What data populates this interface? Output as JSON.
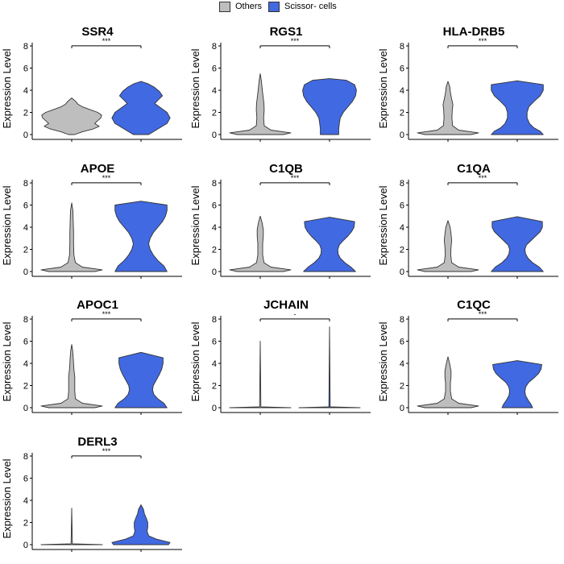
{
  "legend": {
    "items": [
      {
        "label": "Others",
        "color": "#bebebe"
      },
      {
        "label": "Scissor- cells",
        "color": "#4169e1"
      }
    ]
  },
  "chart_data": {
    "type": "violin",
    "ylabel": "Expression Level",
    "ylim": [
      0,
      8.3
    ],
    "yticks": [
      0,
      2,
      4,
      6,
      8
    ],
    "groups": [
      "Others",
      "Scissor- cells"
    ],
    "panels": [
      {
        "title": "SSR4",
        "sig": "***",
        "violins": [
          {
            "group": "Others",
            "profile": [
              [
                0.0,
                0.1
              ],
              [
                0.25,
                0.35
              ],
              [
                0.5,
                0.7
              ],
              [
                0.75,
                0.9
              ],
              [
                1.0,
                0.75
              ],
              [
                1.25,
                0.85
              ],
              [
                1.5,
                0.95
              ],
              [
                1.75,
                0.98
              ],
              [
                2.0,
                0.85
              ],
              [
                2.25,
                0.6
              ],
              [
                2.5,
                0.35
              ],
              [
                2.75,
                0.2
              ],
              [
                3.0,
                0.13
              ],
              [
                3.3,
                0.0
              ]
            ]
          },
          {
            "group": "Scissor- cells",
            "profile": [
              [
                0.0,
                0.25
              ],
              [
                0.5,
                0.55
              ],
              [
                1.0,
                0.85
              ],
              [
                1.5,
                0.95
              ],
              [
                2.0,
                0.85
              ],
              [
                2.5,
                0.6
              ],
              [
                2.8,
                0.45
              ],
              [
                3.1,
                0.55
              ],
              [
                3.5,
                0.7
              ],
              [
                3.9,
                0.6
              ],
              [
                4.3,
                0.42
              ],
              [
                4.6,
                0.22
              ],
              [
                4.8,
                0.0
              ]
            ]
          }
        ]
      },
      {
        "title": "RGS1",
        "sig": "***",
        "violins": [
          {
            "group": "Others",
            "profile": [
              [
                0.0,
                0.75
              ],
              [
                0.15,
                1.0
              ],
              [
                0.4,
                0.35
              ],
              [
                0.8,
                0.13
              ],
              [
                1.5,
                0.11
              ],
              [
                2.2,
                0.13
              ],
              [
                2.8,
                0.12
              ],
              [
                3.5,
                0.09
              ],
              [
                4.2,
                0.06
              ],
              [
                4.8,
                0.04
              ],
              [
                5.5,
                0.0
              ]
            ]
          },
          {
            "group": "Scissor- cells",
            "profile": [
              [
                0.0,
                0.3
              ],
              [
                0.5,
                0.3
              ],
              [
                1.0,
                0.32
              ],
              [
                1.5,
                0.35
              ],
              [
                2.0,
                0.45
              ],
              [
                2.5,
                0.6
              ],
              [
                3.0,
                0.75
              ],
              [
                3.5,
                0.85
              ],
              [
                4.0,
                0.88
              ],
              [
                4.5,
                0.82
              ],
              [
                4.9,
                0.55
              ],
              [
                5.05,
                0.0
              ]
            ]
          }
        ]
      },
      {
        "title": "HLA-DRB5",
        "sig": "***",
        "violins": [
          {
            "group": "Others",
            "profile": [
              [
                0.0,
                0.75
              ],
              [
                0.15,
                1.0
              ],
              [
                0.4,
                0.35
              ],
              [
                0.8,
                0.15
              ],
              [
                1.5,
                0.13
              ],
              [
                2.2,
                0.14
              ],
              [
                2.7,
                0.16
              ],
              [
                3.2,
                0.12
              ],
              [
                3.8,
                0.08
              ],
              [
                4.3,
                0.06
              ],
              [
                4.8,
                0.0
              ]
            ]
          },
          {
            "group": "Scissor- cells",
            "profile": [
              [
                0.0,
                0.85
              ],
              [
                0.3,
                0.75
              ],
              [
                0.6,
                0.55
              ],
              [
                1.0,
                0.4
              ],
              [
                1.5,
                0.32
              ],
              [
                2.0,
                0.32
              ],
              [
                2.5,
                0.38
              ],
              [
                3.0,
                0.55
              ],
              [
                3.5,
                0.75
              ],
              [
                4.0,
                0.85
              ],
              [
                4.5,
                0.85
              ],
              [
                4.85,
                0.0
              ]
            ]
          }
        ]
      },
      {
        "title": "APOE",
        "sig": "***",
        "violins": [
          {
            "group": "Others",
            "profile": [
              [
                0.0,
                0.75
              ],
              [
                0.15,
                1.0
              ],
              [
                0.4,
                0.35
              ],
              [
                0.8,
                0.12
              ],
              [
                1.5,
                0.07
              ],
              [
                2.5,
                0.06
              ],
              [
                3.5,
                0.06
              ],
              [
                4.5,
                0.05
              ],
              [
                5.5,
                0.04
              ],
              [
                6.2,
                0.0
              ]
            ]
          },
          {
            "group": "Scissor- cells",
            "profile": [
              [
                0.0,
                0.85
              ],
              [
                0.5,
                0.75
              ],
              [
                1.0,
                0.55
              ],
              [
                1.5,
                0.4
              ],
              [
                2.0,
                0.3
              ],
              [
                2.5,
                0.25
              ],
              [
                3.0,
                0.3
              ],
              [
                3.5,
                0.4
              ],
              [
                4.0,
                0.55
              ],
              [
                4.5,
                0.7
              ],
              [
                5.0,
                0.8
              ],
              [
                5.5,
                0.85
              ],
              [
                6.0,
                0.85
              ],
              [
                6.35,
                0.0
              ]
            ]
          }
        ]
      },
      {
        "title": "C1QB",
        "sig": "***",
        "violins": [
          {
            "group": "Others",
            "profile": [
              [
                0.0,
                0.75
              ],
              [
                0.15,
                1.0
              ],
              [
                0.4,
                0.35
              ],
              [
                0.8,
                0.12
              ],
              [
                1.5,
                0.08
              ],
              [
                2.5,
                0.08
              ],
              [
                3.2,
                0.1
              ],
              [
                3.8,
                0.1
              ],
              [
                4.4,
                0.06
              ],
              [
                5.0,
                0.0
              ]
            ]
          },
          {
            "group": "Scissor- cells",
            "profile": [
              [
                0.0,
                0.85
              ],
              [
                0.4,
                0.7
              ],
              [
                0.8,
                0.5
              ],
              [
                1.2,
                0.35
              ],
              [
                1.6,
                0.28
              ],
              [
                2.0,
                0.27
              ],
              [
                2.4,
                0.32
              ],
              [
                2.8,
                0.45
              ],
              [
                3.2,
                0.6
              ],
              [
                3.6,
                0.72
              ],
              [
                4.0,
                0.8
              ],
              [
                4.5,
                0.82
              ],
              [
                4.9,
                0.0
              ]
            ]
          }
        ]
      },
      {
        "title": "C1QA",
        "sig": "***",
        "violins": [
          {
            "group": "Others",
            "profile": [
              [
                0.0,
                0.75
              ],
              [
                0.15,
                1.0
              ],
              [
                0.4,
                0.35
              ],
              [
                0.8,
                0.12
              ],
              [
                1.5,
                0.09
              ],
              [
                2.2,
                0.1
              ],
              [
                2.8,
                0.12
              ],
              [
                3.4,
                0.1
              ],
              [
                4.0,
                0.07
              ],
              [
                4.6,
                0.0
              ]
            ]
          },
          {
            "group": "Scissor- cells",
            "profile": [
              [
                0.0,
                0.85
              ],
              [
                0.4,
                0.72
              ],
              [
                0.8,
                0.5
              ],
              [
                1.2,
                0.35
              ],
              [
                1.6,
                0.27
              ],
              [
                2.0,
                0.25
              ],
              [
                2.4,
                0.3
              ],
              [
                2.8,
                0.45
              ],
              [
                3.2,
                0.6
              ],
              [
                3.6,
                0.75
              ],
              [
                4.0,
                0.82
              ],
              [
                4.5,
                0.82
              ],
              [
                4.95,
                0.0
              ]
            ]
          }
        ]
      },
      {
        "title": "APOC1",
        "sig": "***",
        "violins": [
          {
            "group": "Others",
            "profile": [
              [
                0.0,
                0.75
              ],
              [
                0.15,
                1.0
              ],
              [
                0.4,
                0.35
              ],
              [
                0.8,
                0.12
              ],
              [
                1.5,
                0.1
              ],
              [
                2.2,
                0.1
              ],
              [
                2.8,
                0.1
              ],
              [
                3.5,
                0.07
              ],
              [
                4.5,
                0.05
              ],
              [
                5.2,
                0.03
              ],
              [
                5.7,
                0.0
              ]
            ]
          },
          {
            "group": "Scissor- cells",
            "profile": [
              [
                0.0,
                0.85
              ],
              [
                0.4,
                0.75
              ],
              [
                0.8,
                0.55
              ],
              [
                1.2,
                0.42
              ],
              [
                1.6,
                0.38
              ],
              [
                2.0,
                0.4
              ],
              [
                2.5,
                0.5
              ],
              [
                3.0,
                0.6
              ],
              [
                3.5,
                0.68
              ],
              [
                4.0,
                0.72
              ],
              [
                4.5,
                0.72
              ],
              [
                5.0,
                0.0
              ]
            ]
          }
        ]
      },
      {
        "title": "JCHAIN",
        "sig": "-",
        "violins": [
          {
            "group": "Others",
            "profile": [
              [
                0.0,
                1.0
              ],
              [
                0.08,
                0.02
              ],
              [
                6.0,
                0.0
              ]
            ]
          },
          {
            "group": "Scissor- cells",
            "profile": [
              [
                0.0,
                1.0
              ],
              [
                0.08,
                0.02
              ],
              [
                7.3,
                0.0
              ]
            ]
          }
        ]
      },
      {
        "title": "C1QC",
        "sig": "***",
        "violins": [
          {
            "group": "Others",
            "profile": [
              [
                0.0,
                0.75
              ],
              [
                0.15,
                1.0
              ],
              [
                0.4,
                0.35
              ],
              [
                0.8,
                0.12
              ],
              [
                1.5,
                0.08
              ],
              [
                2.2,
                0.08
              ],
              [
                2.8,
                0.1
              ],
              [
                3.3,
                0.1
              ],
              [
                3.9,
                0.06
              ],
              [
                4.6,
                0.0
              ]
            ]
          },
          {
            "group": "Scissor- cells",
            "profile": [
              [
                0.0,
                0.5
              ],
              [
                0.3,
                0.45
              ],
              [
                0.7,
                0.35
              ],
              [
                1.1,
                0.27
              ],
              [
                1.5,
                0.25
              ],
              [
                1.9,
                0.28
              ],
              [
                2.3,
                0.38
              ],
              [
                2.7,
                0.55
              ],
              [
                3.1,
                0.7
              ],
              [
                3.5,
                0.78
              ],
              [
                3.9,
                0.8
              ],
              [
                4.25,
                0.0
              ]
            ]
          }
        ]
      },
      {
        "title": "DERL3",
        "sig": "***",
        "violins": [
          {
            "group": "Others",
            "profile": [
              [
                0.0,
                1.0
              ],
              [
                0.08,
                0.02
              ],
              [
                3.3,
                0.0
              ]
            ]
          },
          {
            "group": "Scissor- cells",
            "profile": [
              [
                0.0,
                0.9
              ],
              [
                0.2,
                0.95
              ],
              [
                0.5,
                0.5
              ],
              [
                0.8,
                0.25
              ],
              [
                1.2,
                0.2
              ],
              [
                1.6,
                0.22
              ],
              [
                2.0,
                0.22
              ],
              [
                2.4,
                0.17
              ],
              [
                2.8,
                0.11
              ],
              [
                3.2,
                0.08
              ],
              [
                3.6,
                0.0
              ]
            ]
          }
        ]
      }
    ]
  }
}
